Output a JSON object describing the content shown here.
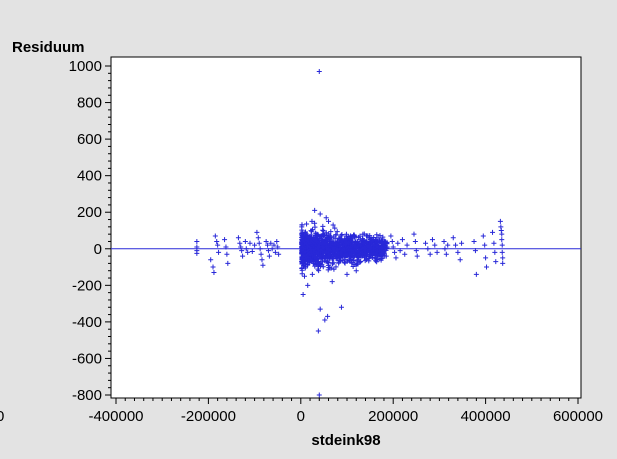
{
  "chart_data": {
    "type": "scatter",
    "xlabel": "stdeink98",
    "ylabel": "Residuum",
    "xlim": [
      -400000,
      600000
    ],
    "ylim": [
      -800,
      1000
    ],
    "x_ticks": [
      -400000,
      -200000,
      0,
      200000,
      400000,
      600000
    ],
    "x_tick_labels": [
      "-400000",
      "-200000",
      "0",
      "200000",
      "400000",
      "600000"
    ],
    "y_ticks": [
      -800,
      -600,
      -400,
      -200,
      0,
      200,
      400,
      600,
      800,
      1000
    ],
    "y_tick_labels": [
      "-800",
      "-600",
      "-400",
      "-200",
      "0",
      "200",
      "400",
      "600",
      "800",
      "1000"
    ],
    "stray_left_label": "0",
    "reference_line_y": 0,
    "marker": "plus",
    "colors": {
      "points": "#2828d8",
      "reference_line": "#2828d8",
      "frame": "#000000",
      "plot_bg": "#ffffff",
      "page_bg": "#e3e3e3"
    },
    "series": [
      {
        "points": [
          [
            40000,
            970
          ],
          [
            40000,
            -800
          ],
          [
            5000,
            -250
          ],
          [
            38000,
            -450
          ],
          [
            42000,
            -330
          ],
          [
            58000,
            -370
          ],
          [
            52000,
            -390
          ],
          [
            88000,
            -320
          ],
          [
            30000,
            210
          ],
          [
            42000,
            190
          ],
          [
            55000,
            170
          ],
          [
            70000,
            130
          ],
          [
            60000,
            150
          ],
          [
            8000,
            -150
          ],
          [
            15000,
            -200
          ],
          [
            25000,
            -140
          ],
          [
            68000,
            -180
          ],
          [
            100000,
            -140
          ],
          [
            120000,
            -120
          ],
          [
            -225000,
            40
          ],
          [
            -225000,
            10
          ],
          [
            -225000,
            -10
          ],
          [
            -225000,
            -25
          ],
          [
            -195000,
            -60
          ],
          [
            -190000,
            -100
          ],
          [
            -188000,
            -130
          ],
          [
            -185000,
            70
          ],
          [
            -182000,
            40
          ],
          [
            -180000,
            20
          ],
          [
            -178000,
            -20
          ],
          [
            -165000,
            50
          ],
          [
            -162000,
            10
          ],
          [
            -160000,
            -30
          ],
          [
            -158000,
            -80
          ],
          [
            -135000,
            60
          ],
          [
            -132000,
            30
          ],
          [
            -130000,
            10
          ],
          [
            -128000,
            -10
          ],
          [
            -126000,
            -40
          ],
          [
            -120000,
            40
          ],
          [
            -118000,
            0
          ],
          [
            -115000,
            -20
          ],
          [
            -110000,
            30
          ],
          [
            -105000,
            -15
          ],
          [
            -100000,
            20
          ],
          [
            -95000,
            90
          ],
          [
            -92000,
            60
          ],
          [
            -90000,
            30
          ],
          [
            -88000,
            0
          ],
          [
            -86000,
            -30
          ],
          [
            -84000,
            -60
          ],
          [
            -82000,
            -90
          ],
          [
            -75000,
            40
          ],
          [
            -72000,
            20
          ],
          [
            -70000,
            -10
          ],
          [
            -68000,
            -40
          ],
          [
            -65000,
            30
          ],
          [
            -62000,
            0
          ],
          [
            -58000,
            20
          ],
          [
            -55000,
            -20
          ],
          [
            -52000,
            40
          ],
          [
            -50000,
            10
          ],
          [
            -48000,
            -30
          ],
          [
            150000,
            60
          ],
          [
            155000,
            30
          ],
          [
            160000,
            -20
          ],
          [
            165000,
            -60
          ],
          [
            170000,
            40
          ],
          [
            175000,
            -30
          ],
          [
            180000,
            20
          ],
          [
            185000,
            -40
          ],
          [
            195000,
            70
          ],
          [
            198000,
            40
          ],
          [
            200000,
            10
          ],
          [
            203000,
            -20
          ],
          [
            206000,
            -50
          ],
          [
            210000,
            30
          ],
          [
            215000,
            -10
          ],
          [
            220000,
            50
          ],
          [
            225000,
            -30
          ],
          [
            230000,
            20
          ],
          [
            245000,
            80
          ],
          [
            248000,
            40
          ],
          [
            250000,
            -10
          ],
          [
            252000,
            -40
          ],
          [
            270000,
            30
          ],
          [
            275000,
            0
          ],
          [
            280000,
            -30
          ],
          [
            285000,
            50
          ],
          [
            290000,
            20
          ],
          [
            295000,
            -20
          ],
          [
            310000,
            40
          ],
          [
            312000,
            0
          ],
          [
            315000,
            -30
          ],
          [
            318000,
            20
          ],
          [
            330000,
            60
          ],
          [
            335000,
            20
          ],
          [
            340000,
            -20
          ],
          [
            345000,
            -60
          ],
          [
            348000,
            30
          ],
          [
            375000,
            40
          ],
          [
            378000,
            -10
          ],
          [
            380000,
            -140
          ],
          [
            395000,
            70
          ],
          [
            398000,
            20
          ],
          [
            400000,
            -50
          ],
          [
            402000,
            -100
          ],
          [
            415000,
            90
          ],
          [
            418000,
            30
          ],
          [
            420000,
            -20
          ],
          [
            422000,
            -70
          ],
          [
            432000,
            150
          ],
          [
            433000,
            120
          ],
          [
            434000,
            100
          ],
          [
            435000,
            80
          ],
          [
            435000,
            50
          ],
          [
            436000,
            20
          ],
          [
            436000,
            -20
          ],
          [
            437000,
            -50
          ],
          [
            437000,
            -80
          ]
        ]
      }
    ]
  }
}
